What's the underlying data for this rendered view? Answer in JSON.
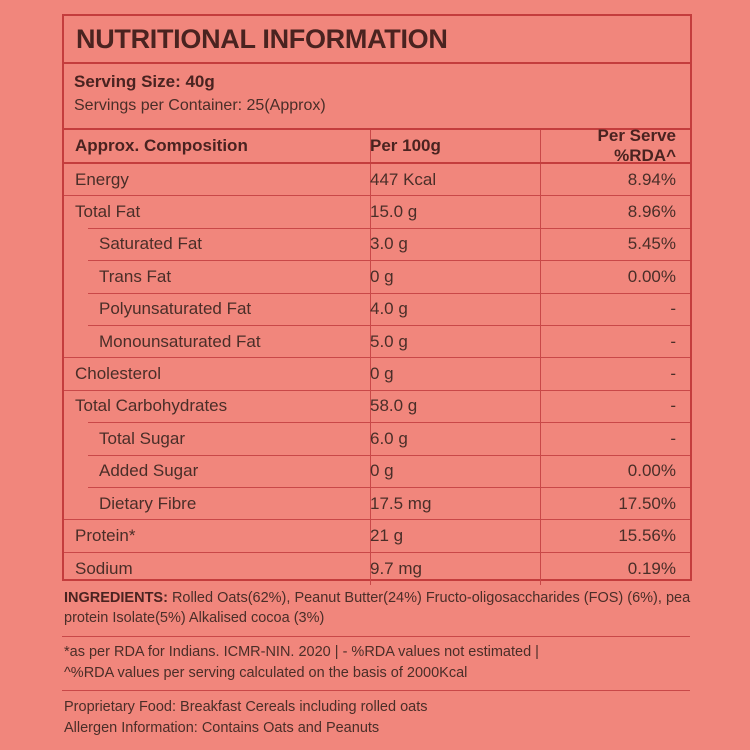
{
  "title": "NUTRITIONAL INFORMATION",
  "serving_size": "Serving Size: 40g",
  "servings_per_container": "Servings per Container: 25(Approx)",
  "headers": [
    "Approx. Composition",
    "Per 100g",
    "Per Serve %RDA^"
  ],
  "rows": [
    {
      "name": "Energy",
      "per100": "447 Kcal",
      "rda": "8.94%",
      "indent": false
    },
    {
      "name": "Total Fat",
      "per100": "15.0 g",
      "rda": "8.96%",
      "indent": false
    },
    {
      "name": "Saturated Fat",
      "per100": "3.0 g",
      "rda": "5.45%",
      "indent": true
    },
    {
      "name": "Trans Fat",
      "per100": "0 g",
      "rda": "0.00%",
      "indent": true
    },
    {
      "name": "Polyunsaturated Fat",
      "per100": "4.0 g",
      "rda": "-",
      "indent": true
    },
    {
      "name": "Monounsaturated Fat",
      "per100": "5.0 g",
      "rda": "-",
      "indent": true
    },
    {
      "name": "Cholesterol",
      "per100": "0 g",
      "rda": "-",
      "indent": false
    },
    {
      "name": "Total Carbohydrates",
      "per100": "58.0 g",
      "rda": "-",
      "indent": false
    },
    {
      "name": "Total Sugar",
      "per100": "6.0 g",
      "rda": "-",
      "indent": true
    },
    {
      "name": "Added Sugar",
      "per100": "0 g",
      "rda": "0.00%",
      "indent": true
    },
    {
      "name": "Dietary Fibre",
      "per100": "17.5 mg",
      "rda": "17.50%",
      "indent": true
    },
    {
      "name": "Protein*",
      "per100": "21 g",
      "rda": "15.56%",
      "indent": false
    },
    {
      "name": "Sodium",
      "per100": "9.7 mg",
      "rda": "0.19%",
      "indent": false
    }
  ],
  "ingredients_label": "INGREDIENTS:",
  "ingredients_text": " Rolled Oats(62%), Peanut Butter(24%) Fructo-oligosaccharides (FOS) (6%), pea protein Isolate(5%) Alkalised cocoa (3%)",
  "footnote_1": "*as per RDA for Indians. ICMR-NIN. 2020 | - %RDA values not estimated |",
  "footnote_2": "^%RDA values per serving calculated on the basis of 2000Kcal",
  "proprietary": "Proprietary Food: Breakfast Cereals including rolled oats",
  "allergen": "Allergen Information: Contains Oats and Peanuts",
  "colors": {
    "background": "#f1867c",
    "border": "#c43d3d",
    "text": "#4a2e28"
  }
}
